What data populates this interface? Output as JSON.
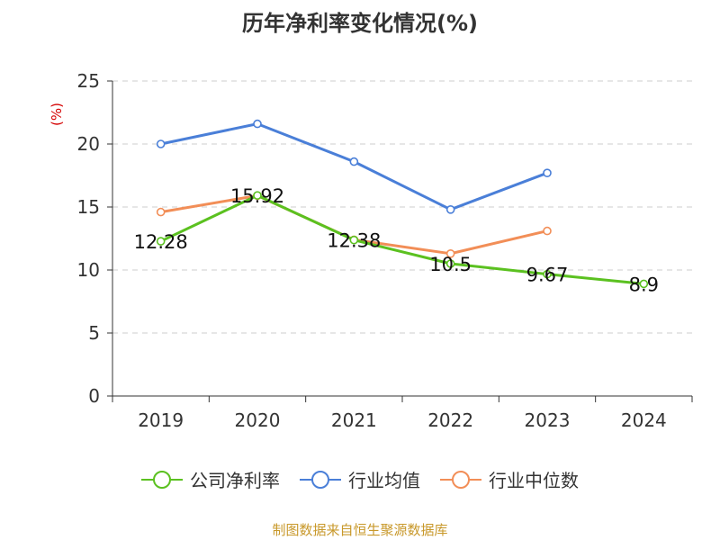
{
  "chart_data": {
    "type": "line",
    "title": "历年净利率变化情况(%)",
    "ylabel": "(%)",
    "categories": [
      "2019",
      "2020",
      "2021",
      "2022",
      "2023",
      "2024"
    ],
    "ylim": [
      0,
      25
    ],
    "yticks": [
      0,
      5,
      10,
      15,
      20,
      25
    ],
    "grid": true,
    "legend_position": "bottom",
    "series": [
      {
        "name": "公司净利率",
        "color": "#5bc120",
        "values": [
          12.28,
          15.92,
          12.38,
          10.5,
          9.67,
          8.9
        ],
        "labels": [
          "12.28",
          "15.92",
          "12.38",
          "10.5",
          "9.67",
          "8.9"
        ]
      },
      {
        "name": "行业均值",
        "color": "#4a7fd8",
        "values": [
          20.0,
          21.6,
          18.6,
          14.8,
          17.7,
          null
        ]
      },
      {
        "name": "行业中位数",
        "color": "#f28e57",
        "values": [
          14.6,
          15.9,
          12.4,
          11.3,
          13.1,
          null
        ]
      }
    ]
  },
  "footer": {
    "source": "制图数据来自恒生聚源数据库"
  }
}
